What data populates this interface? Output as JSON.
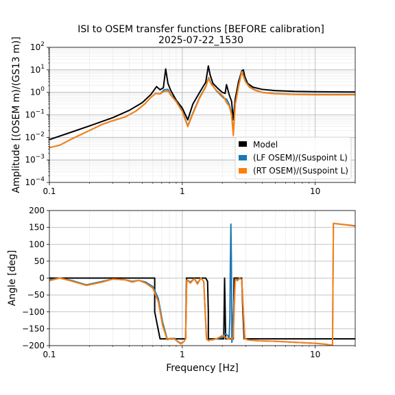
{
  "figure": {
    "title_line1": "ISI to OSEM transfer functions [BEFORE calibration]",
    "title_line2": "2025-07-22_1530"
  },
  "colors": {
    "model": "#000000",
    "lf": "#1f77b4",
    "rt": "#ff7f0e",
    "grid_major": "#b0b0b0",
    "grid_minor": "#e6e6e6"
  },
  "chart_data": [
    {
      "type": "line",
      "panel": "amplitude",
      "xscale": "log",
      "yscale": "log",
      "xlim": [
        0.1,
        20
      ],
      "ylim": [
        0.0001,
        100
      ],
      "xticks": [
        {
          "v": 0.1,
          "label": "0.1"
        },
        {
          "v": 1,
          "label": "1"
        },
        {
          "v": 10,
          "label": "10"
        }
      ],
      "yticks": [
        {
          "v": 0.0001,
          "base": "10",
          "exp": "−4"
        },
        {
          "v": 0.001,
          "base": "10",
          "exp": "−3"
        },
        {
          "v": 0.01,
          "base": "10",
          "exp": "−2"
        },
        {
          "v": 0.1,
          "base": "10",
          "exp": "−1"
        },
        {
          "v": 1,
          "base": "10",
          "exp": "0"
        },
        {
          "v": 10,
          "base": "10",
          "exp": "1"
        },
        {
          "v": 100,
          "base": "10",
          "exp": "2"
        }
      ],
      "xlabel": "",
      "ylabel": "Amplitude [(OSEM m)/(GS13 m)]",
      "grid": true,
      "legend_position": "lower-right",
      "legend": [
        "Model",
        "(LF OSEM)/(Suspoint L)",
        "(RT OSEM)/(Suspoint L)"
      ],
      "series": [
        {
          "name": "Model",
          "color_key": "model",
          "x": [
            0.1,
            0.15,
            0.2,
            0.3,
            0.4,
            0.5,
            0.58,
            0.64,
            0.68,
            0.72,
            0.75,
            0.78,
            0.82,
            0.9,
            1.0,
            1.1,
            1.2,
            1.35,
            1.5,
            1.57,
            1.62,
            1.7,
            1.85,
            2.0,
            2.1,
            2.15,
            2.25,
            2.35,
            2.42,
            2.5,
            2.65,
            2.8,
            2.88,
            2.95,
            3.1,
            3.4,
            4,
            5,
            7,
            10,
            14,
            20
          ],
          "y": [
            0.008,
            0.018,
            0.032,
            0.075,
            0.16,
            0.35,
            0.8,
            1.8,
            1.3,
            1.6,
            11,
            2.5,
            1.2,
            0.45,
            0.2,
            0.06,
            0.3,
            1,
            2.8,
            15,
            6,
            2.5,
            1.5,
            1.0,
            0.9,
            2.2,
            0.8,
            0.4,
            0.06,
            0.5,
            3,
            9,
            10,
            5,
            2.5,
            1.7,
            1.35,
            1.2,
            1.1,
            1.07,
            1.05,
            1.04
          ]
        },
        {
          "name": "(LF OSEM)/(Suspoint L)",
          "color_key": "lf",
          "x": [
            0.1,
            0.12,
            0.15,
            0.2,
            0.25,
            0.3,
            0.37,
            0.45,
            0.52,
            0.58,
            0.63,
            0.68,
            0.73,
            0.78,
            0.82,
            0.9,
            1.0,
            1.1,
            1.2,
            1.35,
            1.5,
            1.58,
            1.65,
            1.8,
            1.95,
            2.05,
            2.15,
            2.25,
            2.35,
            2.42,
            2.5,
            2.65,
            2.8,
            2.9,
            3.0,
            3.2,
            3.5,
            4,
            5,
            7,
            10,
            14,
            20
          ],
          "y": [
            0.0035,
            0.0045,
            0.009,
            0.02,
            0.038,
            0.055,
            0.08,
            0.15,
            0.3,
            0.6,
            0.9,
            0.85,
            1.3,
            1.35,
            0.8,
            0.4,
            0.15,
            0.032,
            0.12,
            0.6,
            1.8,
            4.5,
            2.5,
            1.2,
            0.75,
            0.55,
            0.5,
            0.3,
            0.12,
            0.013,
            0.3,
            2.0,
            8.5,
            5.0,
            3.0,
            1.8,
            1.3,
            1.0,
            0.88,
            0.82,
            0.8,
            0.8,
            0.8
          ]
        },
        {
          "name": "(RT OSEM)/(Suspoint L)",
          "color_key": "rt",
          "x": [
            0.1,
            0.12,
            0.15,
            0.2,
            0.25,
            0.3,
            0.37,
            0.45,
            0.52,
            0.58,
            0.63,
            0.68,
            0.73,
            0.78,
            0.82,
            0.9,
            1.0,
            1.1,
            1.2,
            1.35,
            1.5,
            1.58,
            1.65,
            1.8,
            1.95,
            2.05,
            2.15,
            2.25,
            2.35,
            2.42,
            2.5,
            2.65,
            2.8,
            2.9,
            3.0,
            3.2,
            3.5,
            4,
            5,
            7,
            10,
            14,
            20
          ],
          "y": [
            0.0035,
            0.0045,
            0.009,
            0.02,
            0.038,
            0.055,
            0.08,
            0.15,
            0.3,
            0.6,
            0.9,
            0.85,
            1.1,
            1.15,
            0.75,
            0.38,
            0.14,
            0.03,
            0.11,
            0.55,
            1.7,
            4.2,
            2.3,
            1.25,
            0.85,
            0.62,
            0.35,
            0.25,
            0.1,
            0.012,
            0.28,
            1.8,
            8.0,
            4.6,
            2.8,
            1.7,
            1.25,
            0.98,
            0.86,
            0.8,
            0.78,
            0.78,
            0.78
          ]
        }
      ]
    },
    {
      "type": "line",
      "panel": "phase",
      "xscale": "log",
      "yscale": "linear",
      "xlim": [
        0.1,
        20
      ],
      "ylim": [
        -200,
        200
      ],
      "xticks": [
        {
          "v": 0.1,
          "label": "0.1"
        },
        {
          "v": 1,
          "label": "1"
        },
        {
          "v": 10,
          "label": "10"
        }
      ],
      "yticks": [
        {
          "v": 200,
          "label": "200"
        },
        {
          "v": 150,
          "label": "150"
        },
        {
          "v": 100,
          "label": "100"
        },
        {
          "v": 50,
          "label": "50"
        },
        {
          "v": 0,
          "label": "0"
        },
        {
          "v": -50,
          "label": "−50"
        },
        {
          "v": -100,
          "label": "−100"
        },
        {
          "v": -150,
          "label": "−150"
        },
        {
          "v": -200,
          "label": "−200"
        }
      ],
      "xlabel": "Frequency [Hz]",
      "ylabel": "Angle [deg]",
      "grid": true,
      "series": [
        {
          "name": "Model",
          "color_key": "model",
          "x": [
            0.1,
            0.62,
            0.62,
            0.68,
            0.85,
            1.02,
            1.06,
            1.075,
            1.5,
            1.55,
            1.57,
            1.57,
            1.6,
            1.88,
            1.92,
            2.05,
            2.08,
            2.12,
            2.2,
            2.38,
            2.42,
            2.45,
            2.68,
            2.75,
            2.8,
            2.85,
            2.92,
            2.95,
            3.1,
            5,
            10,
            20
          ],
          "y": [
            0,
            0,
            -100,
            -180,
            -180,
            -180,
            -180,
            0,
            0,
            -10,
            -100,
            -180,
            -180,
            -180,
            -180,
            -180,
            0,
            -180,
            -180,
            -180,
            -180,
            0,
            0,
            0,
            0,
            -90,
            -180,
            -180,
            -180,
            -180,
            -180,
            -180
          ]
        },
        {
          "name": "(LF OSEM)/(Suspoint L)",
          "color_key": "lf",
          "x": [
            0.1,
            0.12,
            0.15,
            0.19,
            0.25,
            0.3,
            0.37,
            0.42,
            0.47,
            0.53,
            0.6,
            0.66,
            0.71,
            0.77,
            0.82,
            0.87,
            0.92,
            0.97,
            1.02,
            1.06,
            1.08,
            1.15,
            1.23,
            1.3,
            1.38,
            1.45,
            1.52,
            1.58,
            1.62,
            1.7,
            1.8,
            1.9,
            2.0,
            2.1,
            2.2,
            2.25,
            2.28,
            2.3,
            2.32,
            2.34,
            2.36,
            2.38,
            2.42,
            2.5,
            2.6,
            2.7,
            2.8,
            2.95,
            3.1,
            3.5,
            4,
            5,
            7,
            10,
            12,
            13.5,
            13.7,
            20
          ],
          "y": [
            -5,
            0,
            -8,
            -20,
            -10,
            -3,
            -5,
            -10,
            -7,
            -12,
            -25,
            -60,
            -130,
            -180,
            -180,
            -178,
            -187,
            -193,
            -190,
            -180,
            -5,
            -12,
            -2,
            -15,
            0,
            -10,
            -180,
            -185,
            -183,
            -182,
            -180,
            -178,
            -175,
            -165,
            -170,
            -180,
            -120,
            40,
            160,
            60,
            -190,
            -180,
            -100,
            -5,
            -5,
            -2,
            -3,
            -178,
            -183,
            -185,
            -186,
            -187,
            -190,
            -193,
            -196,
            -199,
            162,
            155
          ]
        },
        {
          "name": "(RT OSEM)/(Suspoint L)",
          "color_key": "rt",
          "x": [
            0.1,
            0.12,
            0.15,
            0.19,
            0.25,
            0.3,
            0.37,
            0.42,
            0.47,
            0.53,
            0.6,
            0.66,
            0.71,
            0.77,
            0.82,
            0.87,
            0.92,
            0.97,
            1.02,
            1.06,
            1.08,
            1.15,
            1.23,
            1.3,
            1.38,
            1.45,
            1.52,
            1.58,
            1.62,
            1.7,
            1.8,
            1.9,
            2.0,
            2.1,
            2.2,
            2.3,
            2.38,
            2.42,
            2.5,
            2.6,
            2.7,
            2.8,
            2.95,
            3.1,
            3.5,
            4,
            5,
            7,
            10,
            12,
            13.5,
            13.7,
            20
          ],
          "y": [
            -8,
            0,
            -10,
            -22,
            -12,
            -3,
            -5,
            -12,
            -7,
            -15,
            -30,
            -70,
            -140,
            -183,
            -178,
            -180,
            -188,
            -195,
            -190,
            -180,
            -5,
            -15,
            -2,
            -18,
            0,
            -10,
            -180,
            -186,
            -183,
            -183,
            -180,
            -175,
            -170,
            -175,
            -180,
            -178,
            -180,
            -175,
            -5,
            -8,
            0,
            -5,
            -180,
            -183,
            -185,
            -186,
            -187,
            -190,
            -193,
            -196,
            -199,
            162,
            154
          ]
        }
      ]
    }
  ]
}
